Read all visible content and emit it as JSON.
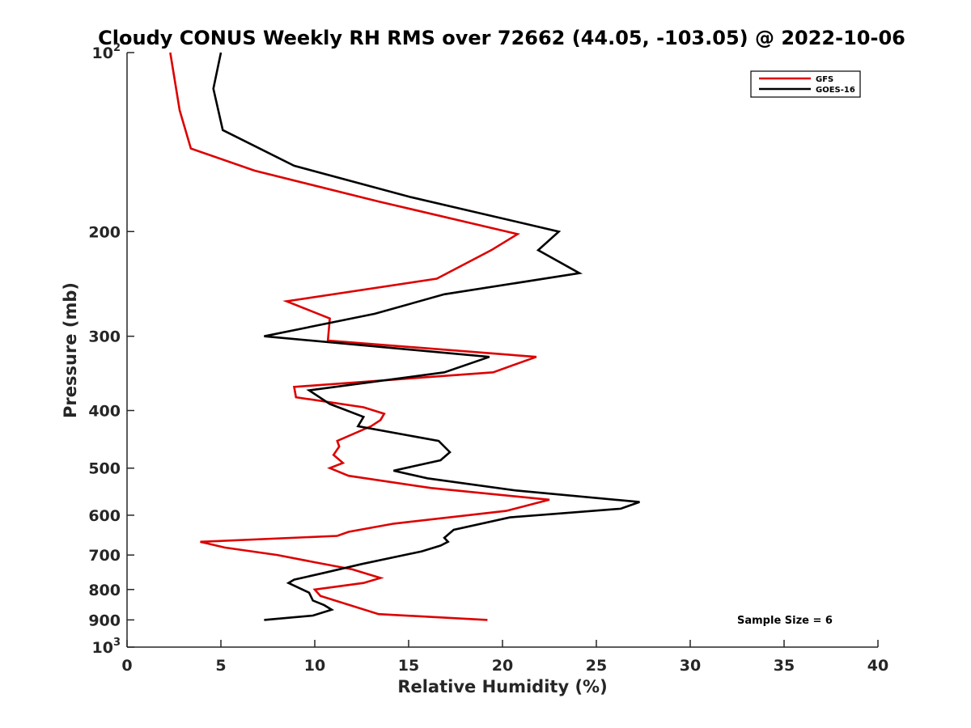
{
  "chart_data": {
    "type": "line",
    "title": "Cloudy CONUS Weekly RH RMS over 72662 (44.05, -103.05) @ 2022-10-06",
    "xlabel": "Relative Humidity (%)",
    "ylabel": "Pressure (mb)",
    "xlim": [
      0,
      40
    ],
    "ylim": [
      100,
      1000
    ],
    "y_scale": "log",
    "y_reversed": true,
    "x_ticks": [
      0,
      5,
      10,
      15,
      20,
      25,
      30,
      35,
      40
    ],
    "x_tick_labels": [
      "0",
      "5",
      "10",
      "15",
      "20",
      "25",
      "30",
      "35",
      "40"
    ],
    "y_ticks": [
      100,
      200,
      300,
      400,
      500,
      600,
      700,
      800,
      900,
      1000
    ],
    "y_tick_labels": [
      {
        "base": "10",
        "sup": "2"
      },
      {
        "base": "200",
        "sup": ""
      },
      {
        "base": "300",
        "sup": ""
      },
      {
        "base": "400",
        "sup": ""
      },
      {
        "base": "500",
        "sup": ""
      },
      {
        "base": "600",
        "sup": ""
      },
      {
        "base": "700",
        "sup": ""
      },
      {
        "base": "800",
        "sup": ""
      },
      {
        "base": "900",
        "sup": ""
      },
      {
        "base": "10",
        "sup": "3"
      }
    ],
    "grid": false,
    "legend_position": "top-right",
    "annotation": "Sample Size = 6",
    "series": [
      {
        "name": "GFS",
        "color": "#dd0000",
        "points": [
          [
            19.2,
            900
          ],
          [
            13.4,
            880
          ],
          [
            10.3,
            820
          ],
          [
            10.0,
            800
          ],
          [
            12.6,
            780
          ],
          [
            13.5,
            765
          ],
          [
            12.0,
            740
          ],
          [
            10.0,
            720
          ],
          [
            8.0,
            700
          ],
          [
            5.2,
            680
          ],
          [
            3.9,
            665
          ],
          [
            11.2,
            650
          ],
          [
            11.8,
            640
          ],
          [
            14.2,
            620
          ],
          [
            20.2,
            590
          ],
          [
            22.5,
            565
          ],
          [
            16.2,
            540
          ],
          [
            11.8,
            515
          ],
          [
            10.8,
            500
          ],
          [
            11.5,
            490
          ],
          [
            11.0,
            475
          ],
          [
            11.3,
            460
          ],
          [
            11.2,
            450
          ],
          [
            13.0,
            425
          ],
          [
            13.5,
            415
          ],
          [
            13.7,
            405
          ],
          [
            12.6,
            395
          ],
          [
            9.0,
            380
          ],
          [
            8.9,
            365
          ],
          [
            19.5,
            345
          ],
          [
            21.8,
            325
          ],
          [
            10.7,
            305
          ],
          [
            10.8,
            280
          ],
          [
            8.5,
            262
          ],
          [
            16.5,
            240
          ],
          [
            19.4,
            215
          ],
          [
            20.8,
            202
          ],
          [
            13.4,
            178
          ],
          [
            6.8,
            158
          ],
          [
            3.4,
            145
          ],
          [
            2.8,
            125
          ],
          [
            2.3,
            100
          ]
        ]
      },
      {
        "name": "GOES-16",
        "color": "#000000",
        "points": [
          [
            7.3,
            900
          ],
          [
            9.9,
            885
          ],
          [
            10.9,
            865
          ],
          [
            10.5,
            850
          ],
          [
            9.9,
            835
          ],
          [
            9.7,
            810
          ],
          [
            8.6,
            780
          ],
          [
            8.9,
            770
          ],
          [
            10.5,
            750
          ],
          [
            12.5,
            725
          ],
          [
            15.7,
            690
          ],
          [
            16.7,
            675
          ],
          [
            17.1,
            665
          ],
          [
            16.9,
            655
          ],
          [
            17.4,
            635
          ],
          [
            20.4,
            605
          ],
          [
            26.3,
            585
          ],
          [
            27.3,
            570
          ],
          [
            20.7,
            545
          ],
          [
            16.0,
            520
          ],
          [
            14.2,
            505
          ],
          [
            16.7,
            485
          ],
          [
            17.2,
            470
          ],
          [
            16.6,
            450
          ],
          [
            12.3,
            425
          ],
          [
            12.6,
            410
          ],
          [
            10.8,
            390
          ],
          [
            9.7,
            370
          ],
          [
            16.9,
            345
          ],
          [
            19.3,
            325
          ],
          [
            7.3,
            300
          ],
          [
            13.2,
            275
          ],
          [
            16.9,
            255
          ],
          [
            24.1,
            235
          ],
          [
            21.9,
            215
          ],
          [
            23.0,
            200
          ],
          [
            15.1,
            175
          ],
          [
            8.9,
            155
          ],
          [
            5.1,
            135
          ],
          [
            4.6,
            115
          ],
          [
            5.0,
            100
          ]
        ]
      }
    ]
  }
}
